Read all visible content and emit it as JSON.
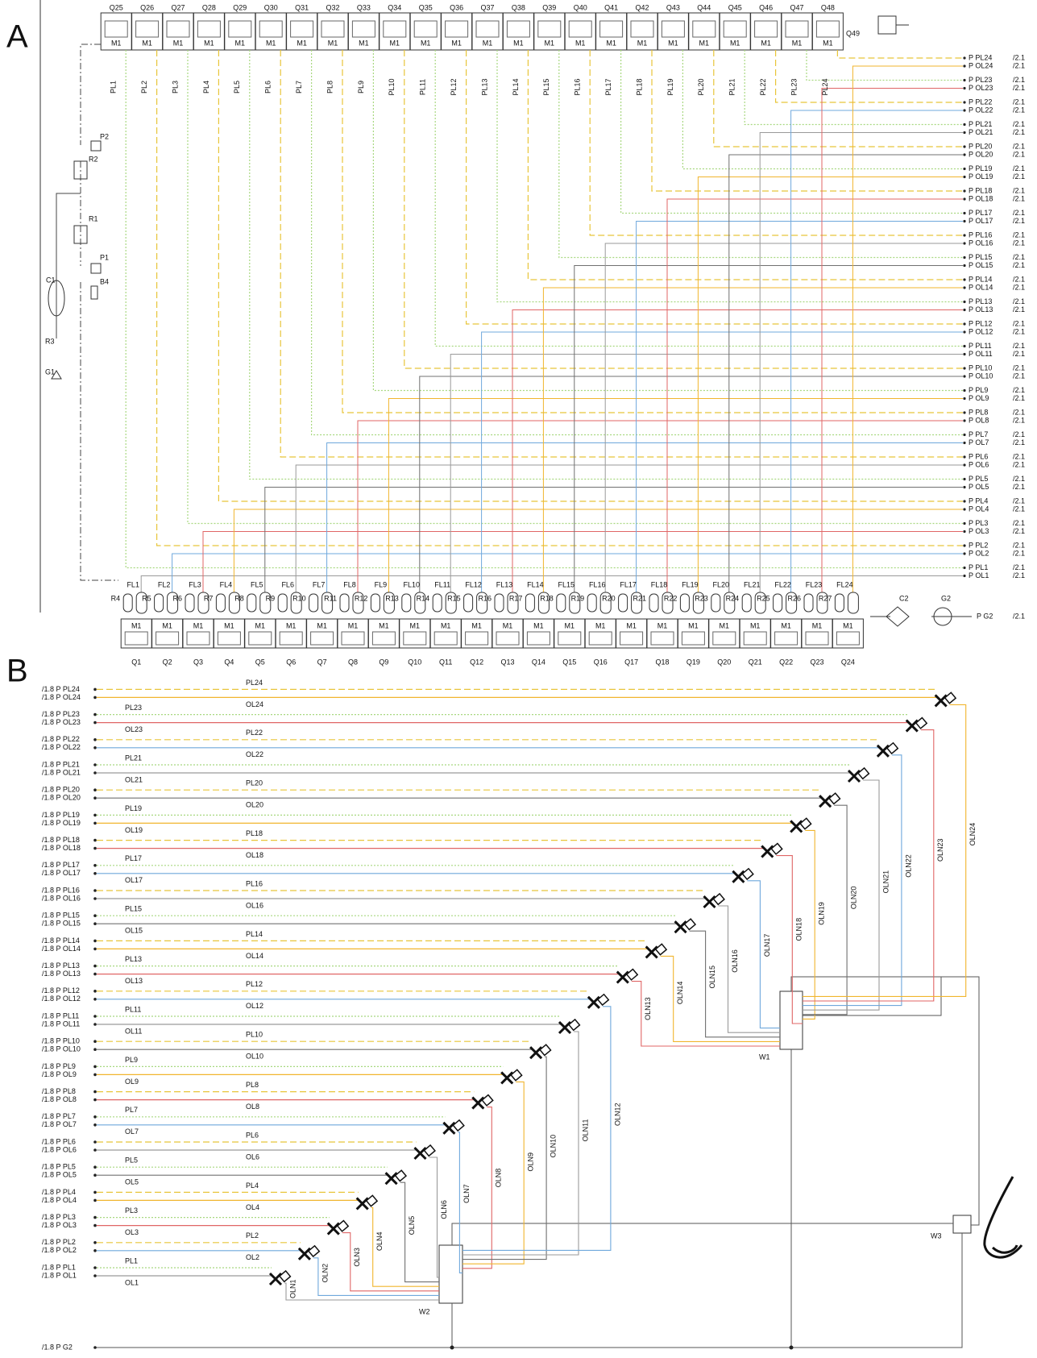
{
  "panel_a": {
    "label": "A",
    "m_label": "M1",
    "ref": "/2.1",
    "q49": "Q49",
    "top_q": [
      "Q25",
      "Q26",
      "Q27",
      "Q28",
      "Q29",
      "Q30",
      "Q31",
      "Q32",
      "Q33",
      "Q34",
      "Q35",
      "Q36",
      "Q37",
      "Q38",
      "Q39",
      "Q40",
      "Q41",
      "Q42",
      "Q43",
      "Q44",
      "Q45",
      "Q46",
      "Q47",
      "Q48"
    ],
    "bottom_q": [
      "Q1",
      "Q2",
      "Q3",
      "Q4",
      "Q5",
      "Q6",
      "Q7",
      "Q8",
      "Q9",
      "Q10",
      "Q11",
      "Q12",
      "Q13",
      "Q14",
      "Q15",
      "Q16",
      "Q17",
      "Q18",
      "Q19",
      "Q20",
      "Q21",
      "Q22",
      "Q23",
      "Q24"
    ],
    "pl": [
      "PL1",
      "PL2",
      "PL3",
      "PL4",
      "PL5",
      "PL6",
      "PL7",
      "PL8",
      "PL9",
      "PL10",
      "PL11",
      "PL12",
      "PL13",
      "PL14",
      "PL15",
      "PL16",
      "PL17",
      "PL18",
      "PL19",
      "PL20",
      "PL21",
      "PL22",
      "PL23",
      "PL24"
    ],
    "fl": [
      "FL1",
      "FL2",
      "FL3",
      "FL4",
      "FL5",
      "FL6",
      "FL7",
      "FL8",
      "FL9",
      "FL10",
      "FL11",
      "FL12",
      "FL13",
      "FL14",
      "FL15",
      "FL16",
      "FL17",
      "FL18",
      "FL19",
      "FL20",
      "FL21",
      "FL22",
      "FL23",
      "FL24"
    ],
    "r": [
      "R4",
      "R5",
      "R6",
      "R7",
      "R8",
      "R9",
      "R10",
      "R11",
      "R12",
      "R13",
      "R14",
      "R15",
      "R16",
      "R17",
      "R18",
      "R19",
      "R20",
      "R21",
      "R22",
      "R23",
      "R24",
      "R25",
      "R26",
      "R27"
    ],
    "right": [
      "P PL24",
      "P OL24",
      "P PL23",
      "P OL23",
      "P PL22",
      "P OL22",
      "P PL21",
      "P OL21",
      "P PL20",
      "P OL20",
      "P PL19",
      "P OL19",
      "P PL18",
      "P OL18",
      "P PL17",
      "P OL17",
      "P PL16",
      "P OL16",
      "P PL15",
      "P OL15",
      "P PL14",
      "P OL14",
      "P PL13",
      "P OL13",
      "P PL12",
      "P OL12",
      "P PL11",
      "P OL11",
      "P PL10",
      "P OL10",
      "P PL9",
      "P OL9",
      "P PL8",
      "P OL8",
      "P PL7",
      "P OL7",
      "P PL6",
      "P OL6",
      "P PL5",
      "P OL5",
      "P PL4",
      "P OL4",
      "P PL3",
      "P OL3",
      "P PL2",
      "P OL2",
      "P PL1",
      "P OL1"
    ],
    "components": {
      "p2": "P2",
      "r2": "R2",
      "r1": "R1",
      "p1": "P1",
      "c1": "C1",
      "r3": "R3",
      "g1": "G1",
      "b4": "B4",
      "c2": "C2",
      "g2": "G2",
      "pg2": "P G2"
    }
  },
  "panel_b": {
    "label": "B",
    "g2": "/1.8 P G2",
    "w1": "W1",
    "w2": "W2",
    "w3": "W3",
    "left": [
      "/1.8 P PL24",
      "/1.8 P OL24",
      "/1.8 P PL23",
      "/1.8 P OL23",
      "/1.8 P PL22",
      "/1.8 P OL22",
      "/1.8 P PL21",
      "/1.8 P OL21",
      "/1.8 P PL20",
      "/1.8 P OL20",
      "/1.8 P PL19",
      "/1.8 P OL19",
      "/1.8 P PL18",
      "/1.8 P OL18",
      "/1.8 P PL17",
      "/1.8 P OL17",
      "/1.8 P PL16",
      "/1.8 P OL16",
      "/1.8 P PL15",
      "/1.8 P OL15",
      "/1.8 P PL14",
      "/1.8 P OL14",
      "/1.8 P PL13",
      "/1.8 P OL13",
      "/1.8 P PL12",
      "/1.8 P OL12",
      "/1.8 P PL11",
      "/1.8 P OL11",
      "/1.8 P PL10",
      "/1.8 P OL10",
      "/1.8 P PL9",
      "/1.8 P OL9",
      "/1.8 P PL8",
      "/1.8 P OL8",
      "/1.8 P PL7",
      "/1.8 P OL7",
      "/1.8 P PL6",
      "/1.8 P OL6",
      "/1.8 P PL5",
      "/1.8 P OL5",
      "/1.8 P PL4",
      "/1.8 P OL4",
      "/1.8 P PL3",
      "/1.8 P OL3",
      "/1.8 P PL2",
      "/1.8 P OL2",
      "/1.8 P PL1",
      "/1.8 P OL1"
    ],
    "line_labels": [
      "PL24",
      "OL24",
      "PL23",
      "OL23",
      "PL22",
      "OL22",
      "PL21",
      "OL21",
      "PL20",
      "OL20",
      "PL19",
      "OL19",
      "PL18",
      "OL18",
      "PL17",
      "OL17",
      "PL16",
      "OL16",
      "PL15",
      "OL15",
      "PL14",
      "OL14",
      "PL13",
      "OL13",
      "PL12",
      "OL12",
      "PL11",
      "OL11",
      "PL10",
      "OL10",
      "PL9",
      "OL9",
      "PL8",
      "OL8",
      "PL7",
      "OL7",
      "PL6",
      "OL6",
      "PL5",
      "OL5",
      "PL4",
      "OL4",
      "PL3",
      "OL3",
      "PL2",
      "OL2",
      "PL1",
      "OL1"
    ],
    "oln": [
      "OLN1",
      "OLN2",
      "OLN3",
      "OLN4",
      "OLN5",
      "OLN6",
      "OLN7",
      "OLN8",
      "OLN9",
      "OLN10",
      "OLN11",
      "OLN12",
      "OLN13",
      "OLN14",
      "OLN15",
      "OLN16",
      "OLN17",
      "OLN18",
      "OLN19",
      "OLN20",
      "OLN21",
      "OLN22",
      "OLN23",
      "OLN24"
    ]
  },
  "style": {
    "pl_colors": [
      "#a8d880",
      "#e8c53a"
    ],
    "ol_colors": [
      "#9a9a9a",
      "#6fa8dc",
      "#e06666",
      "#f1b52e",
      "#707070"
    ]
  }
}
